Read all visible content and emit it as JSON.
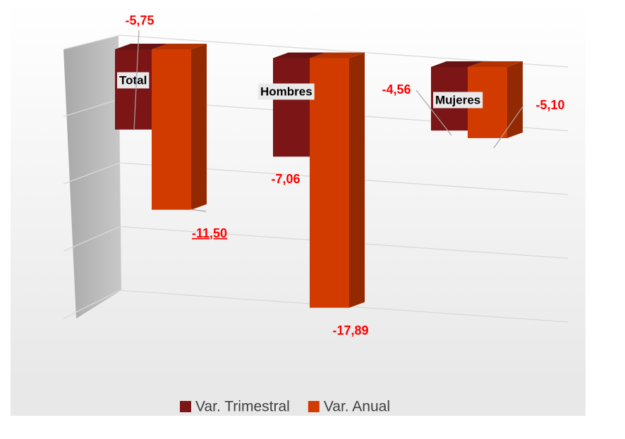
{
  "chart_data": {
    "type": "bar3d",
    "categories": [
      "Total",
      "Hombres",
      "Mujeres"
    ],
    "series": [
      {
        "name": "Var. Trimestral",
        "color": "#7b1516",
        "values": [
          -5.75,
          -7.06,
          -4.56
        ],
        "value_labels": [
          "-5,75",
          "-7,06",
          "-4,56"
        ]
      },
      {
        "name": "Var. Anual",
        "color": "#d23b00",
        "values": [
          -11.5,
          -17.89,
          -5.1
        ],
        "value_labels": [
          "-11,50",
          "-17,89",
          "-5,10"
        ]
      }
    ],
    "ylim": [
      -20,
      0
    ],
    "yticks": [
      -20,
      -15,
      -10,
      -5,
      0
    ],
    "grid": true,
    "legend": "bottom"
  }
}
